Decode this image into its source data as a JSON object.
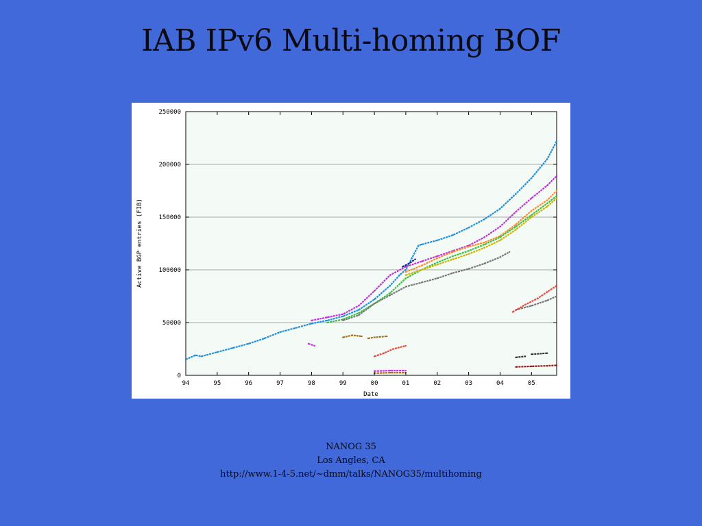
{
  "slide": {
    "title": "IAB IPv6 Multi-homing BOF",
    "footer_lines": [
      "NANOG 35",
      "Los Angles, CA",
      "http://www.1-4-5.net/~dmm/talks/NANOG35/multihoming"
    ]
  },
  "chart_data": {
    "type": "scatter",
    "title": "",
    "xlabel": "Date",
    "ylabel": "Active BGP entries (FIB)",
    "xlim": [
      1994.0,
      2005.8
    ],
    "ylim": [
      0,
      250000
    ],
    "x_ticks": [
      "94",
      "95",
      "96",
      "97",
      "98",
      "99",
      "00",
      "01",
      "02",
      "03",
      "04",
      "05"
    ],
    "x_tick_values": [
      1994,
      1995,
      1996,
      1997,
      1998,
      1999,
      2000,
      2001,
      2002,
      2003,
      2004,
      2005
    ],
    "y_ticks": [
      "0",
      "50000",
      "100000",
      "150000",
      "200000",
      "250000"
    ],
    "y_tick_values": [
      0,
      50000,
      100000,
      150000,
      200000,
      250000
    ],
    "grid": true,
    "colors": {
      "background": "#f4faf6",
      "grid": "#a8a8a8",
      "slide_background": "#4169d9"
    },
    "series": [
      {
        "color": "#1f8fdc",
        "points": [
          [
            1994.0,
            15000
          ],
          [
            1994.3,
            19000
          ],
          [
            1994.5,
            18000
          ],
          [
            1995.0,
            22000
          ],
          [
            1995.5,
            26000
          ],
          [
            1996.0,
            30000
          ],
          [
            1996.5,
            35000
          ],
          [
            1997.0,
            41000
          ],
          [
            1997.5,
            45000
          ],
          [
            1998.0,
            49000
          ],
          [
            1998.5,
            52000
          ],
          [
            1999.0,
            56000
          ],
          [
            1999.5,
            62000
          ],
          [
            2000.0,
            72000
          ],
          [
            2000.5,
            85000
          ],
          [
            2000.8,
            95000
          ],
          [
            2001.0,
            100000
          ],
          [
            2001.4,
            123000
          ],
          [
            2001.5,
            124000
          ],
          [
            2002.0,
            128000
          ],
          [
            2002.5,
            133000
          ],
          [
            2003.0,
            140000
          ],
          [
            2003.5,
            148000
          ],
          [
            2004.0,
            158000
          ],
          [
            2004.5,
            172000
          ],
          [
            2005.0,
            187000
          ],
          [
            2005.5,
            205000
          ],
          [
            2005.8,
            222000
          ]
        ]
      },
      {
        "color": "#c033d8",
        "points": [
          [
            1998.0,
            52000
          ],
          [
            1998.5,
            55000
          ],
          [
            1999.0,
            58000
          ],
          [
            1999.5,
            66000
          ],
          [
            2000.0,
            80000
          ],
          [
            2000.5,
            95000
          ],
          [
            2001.0,
            103000
          ],
          [
            2001.5,
            108000
          ],
          [
            2002.0,
            113000
          ],
          [
            2002.5,
            118000
          ],
          [
            2003.0,
            123000
          ],
          [
            2003.5,
            131000
          ],
          [
            2004.0,
            141000
          ],
          [
            2004.5,
            155000
          ],
          [
            2005.0,
            168000
          ],
          [
            2005.5,
            180000
          ],
          [
            2005.8,
            189000
          ]
        ]
      },
      {
        "color": "#ff8c2a",
        "points": [
          [
            2001.0,
            98000
          ],
          [
            2001.5,
            104000
          ],
          [
            2002.0,
            111000
          ],
          [
            2002.5,
            117000
          ],
          [
            2003.0,
            122000
          ],
          [
            2003.5,
            126000
          ],
          [
            2004.0,
            132000
          ],
          [
            2004.5,
            143000
          ],
          [
            2005.0,
            156000
          ],
          [
            2005.5,
            166000
          ],
          [
            2005.8,
            175000
          ]
        ]
      },
      {
        "color": "#3bbf3b",
        "points": [
          [
            1998.5,
            50000
          ],
          [
            1999.0,
            53000
          ],
          [
            1999.5,
            59000
          ],
          [
            2000.0,
            68000
          ],
          [
            2000.5,
            78000
          ],
          [
            2001.0,
            92000
          ],
          [
            2001.5,
            100000
          ],
          [
            2002.0,
            107000
          ],
          [
            2002.5,
            113000
          ],
          [
            2003.0,
            118000
          ],
          [
            2003.5,
            124000
          ],
          [
            2004.0,
            131000
          ],
          [
            2004.5,
            141000
          ],
          [
            2005.0,
            152000
          ],
          [
            2005.5,
            163000
          ],
          [
            2005.8,
            170000
          ]
        ]
      },
      {
        "color": "#c9b400",
        "points": [
          [
            2001.0,
            95000
          ],
          [
            2001.5,
            100000
          ],
          [
            2002.0,
            105000
          ],
          [
            2002.5,
            110000
          ],
          [
            2003.0,
            115000
          ],
          [
            2003.5,
            121000
          ],
          [
            2004.0,
            128000
          ],
          [
            2004.5,
            138000
          ],
          [
            2005.0,
            150000
          ],
          [
            2005.5,
            160000
          ],
          [
            2005.8,
            168000
          ]
        ]
      },
      {
        "color": "#777777",
        "points": [
          [
            1999.0,
            52000
          ],
          [
            1999.5,
            57000
          ],
          [
            2000.0,
            68000
          ],
          [
            2000.5,
            76000
          ],
          [
            2001.0,
            84000
          ],
          [
            2001.5,
            88000
          ],
          [
            2002.0,
            92000
          ],
          [
            2002.5,
            97000
          ],
          [
            2003.0,
            101000
          ],
          [
            2003.5,
            106000
          ],
          [
            2004.0,
            112000
          ],
          [
            2004.3,
            117000
          ]
        ]
      },
      {
        "color": "#777777",
        "points": [
          [
            2004.5,
            62000
          ],
          [
            2005.0,
            66000
          ],
          [
            2005.5,
            71000
          ],
          [
            2005.8,
            75000
          ]
        ]
      },
      {
        "color": "#e8463a",
        "points": [
          [
            2004.4,
            60000
          ],
          [
            2004.8,
            67000
          ],
          [
            2005.2,
            73000
          ],
          [
            2005.5,
            79000
          ],
          [
            2005.8,
            85000
          ]
        ]
      },
      {
        "color": "#e8463a",
        "points": [
          [
            2000.0,
            18000
          ],
          [
            2000.3,
            21000
          ],
          [
            2000.6,
            25000
          ],
          [
            2001.0,
            28000
          ]
        ]
      },
      {
        "color": "#a07020",
        "points": [
          [
            1999.0,
            36000
          ],
          [
            1999.3,
            38000
          ],
          [
            1999.6,
            37000
          ]
        ]
      },
      {
        "color": "#a07020",
        "points": [
          [
            1999.8,
            35000
          ],
          [
            2000.0,
            36000
          ],
          [
            2000.4,
            37000
          ]
        ]
      },
      {
        "color": "#c033d8",
        "points": [
          [
            1997.9,
            30000
          ],
          [
            1998.1,
            28000
          ]
        ]
      },
      {
        "color": "#c033d8",
        "points": [
          [
            2000.0,
            4000
          ],
          [
            2000.5,
            4500
          ],
          [
            2001.0,
            4500
          ]
        ]
      },
      {
        "color": "#a07020",
        "points": [
          [
            2000.0,
            2000
          ],
          [
            2000.5,
            2500
          ],
          [
            2001.0,
            2500
          ]
        ]
      },
      {
        "color": "#8b1a1a",
        "points": [
          [
            2004.5,
            8000
          ],
          [
            2005.0,
            8500
          ],
          [
            2005.5,
            9000
          ],
          [
            2005.8,
            9500
          ]
        ]
      },
      {
        "color": "#333333",
        "points": [
          [
            2004.5,
            17000
          ],
          [
            2004.8,
            18000
          ]
        ]
      },
      {
        "color": "#333333",
        "points": [
          [
            2005.0,
            20000
          ],
          [
            2005.5,
            21000
          ]
        ]
      },
      {
        "color": "#1a1a8c",
        "points": [
          [
            2000.9,
            103000
          ],
          [
            2001.1,
            106000
          ],
          [
            2001.3,
            110000
          ]
        ]
      }
    ]
  }
}
